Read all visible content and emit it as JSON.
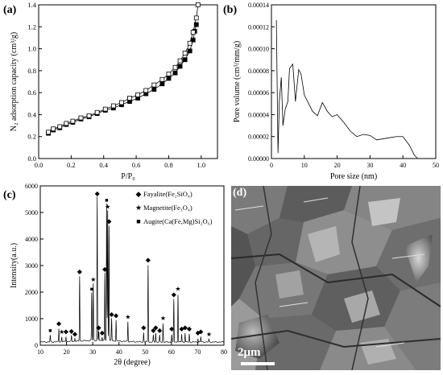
{
  "chart_data": [
    {
      "panel": "(a)",
      "type": "line",
      "ylabel": "N₂ adsorption capacity (cm³/g)",
      "xlabel": "P/P₀",
      "xlim": [
        0.0,
        1.1
      ],
      "ylim": [
        0.0,
        1.4
      ],
      "xticks": [
        "0.0",
        "0.2",
        "0.4",
        "0.6",
        "0.8",
        "1.0"
      ],
      "yticks": [
        "0.0",
        "0.2",
        "0.4",
        "0.6",
        "0.8",
        "1.0",
        "1.2",
        "1.4"
      ],
      "series": [
        {
          "marker": "filled-square",
          "x": [
            0.06,
            0.09,
            0.13,
            0.17,
            0.21,
            0.26,
            0.31,
            0.36,
            0.41,
            0.46,
            0.51,
            0.56,
            0.61,
            0.66,
            0.71,
            0.76,
            0.8,
            0.84,
            0.87,
            0.9,
            0.93,
            0.95,
            0.96,
            0.97
          ],
          "y": [
            0.23,
            0.26,
            0.28,
            0.31,
            0.33,
            0.36,
            0.38,
            0.41,
            0.44,
            0.46,
            0.49,
            0.52,
            0.55,
            0.59,
            0.63,
            0.68,
            0.73,
            0.78,
            0.84,
            0.9,
            0.98,
            1.08,
            1.16,
            1.22
          ]
        },
        {
          "marker": "open-square",
          "x": [
            0.06,
            0.09,
            0.13,
            0.17,
            0.21,
            0.26,
            0.31,
            0.36,
            0.41,
            0.46,
            0.51,
            0.56,
            0.61,
            0.66,
            0.71,
            0.76,
            0.8,
            0.84,
            0.87,
            0.9,
            0.93,
            0.95,
            0.97,
            0.98
          ],
          "y": [
            0.24,
            0.27,
            0.29,
            0.32,
            0.34,
            0.37,
            0.39,
            0.42,
            0.45,
            0.48,
            0.51,
            0.55,
            0.58,
            0.62,
            0.67,
            0.72,
            0.77,
            0.83,
            0.89,
            0.96,
            1.05,
            1.15,
            1.28,
            1.4
          ]
        }
      ]
    },
    {
      "panel": "(b)",
      "type": "line",
      "ylabel": "Pore volume (cm³/mm/g)",
      "xlabel": "Pore size (nm)",
      "xlim": [
        0,
        50
      ],
      "ylim": [
        0,
        0.00014
      ],
      "xticks": [
        "0",
        "10",
        "20",
        "30",
        "40",
        "50"
      ],
      "yticks": [
        "0.00000",
        "0.00002",
        "0.00004",
        "0.00006",
        "0.00008",
        "0.00010",
        "0.00012",
        "0.00014"
      ],
      "series": [
        {
          "x": [
            1.5,
            2.0,
            2.4,
            3.0,
            3.5,
            4.2,
            5.0,
            5.5,
            6.5,
            7.3,
            8.3,
            9.0,
            10.0,
            11.0,
            12.5,
            14.0,
            15.5,
            17.0,
            18.5,
            20.0,
            22.0,
            24.0,
            26.0,
            28.0,
            30.0,
            32.0,
            34.0,
            36.0,
            38.0,
            40.0,
            42.0,
            43.5,
            44.5
          ],
          "y": [
            0.000126,
            5e-06,
            5.2e-05,
            7.4e-05,
            3e-05,
            4.5e-05,
            5.2e-05,
            8.2e-05,
            8.6e-05,
            5.2e-05,
            8.1e-05,
            7.7e-05,
            5.8e-05,
            5.2e-05,
            4.3e-05,
            3.9e-05,
            5.1e-05,
            4.3e-05,
            3.8e-05,
            4e-05,
            3.3e-05,
            2.5e-05,
            2e-05,
            2.2e-05,
            2.1e-05,
            1.7e-05,
            1.8e-05,
            1.9e-05,
            2e-05,
            2e-05,
            1.2e-05,
            3e-06,
            0.0
          ]
        }
      ]
    },
    {
      "panel": "(c)",
      "type": "line",
      "ylabel": "Intensity(a.u.)",
      "xlabel": "2θ (degree)",
      "xlim": [
        10,
        80
      ],
      "ylim": [
        0,
        6000
      ],
      "xticks": [
        "10",
        "20",
        "30",
        "40",
        "50",
        "60",
        "70",
        "80"
      ],
      "yticks": [
        "0",
        "1000",
        "2000",
        "3000",
        "4000",
        "5000",
        "6000"
      ],
      "legend": [
        {
          "marker": "◆",
          "label": "Fayalite(Fe₂SiO₄)"
        },
        {
          "marker": "★",
          "label": "Magnetite(Fe₃O₄)"
        },
        {
          "marker": "■",
          "label": "Augite(Ca(Fe,Mg)Si₂O₆)"
        }
      ],
      "legend_position": "top-right",
      "peaks": [
        {
          "x": 13.8,
          "y": 400,
          "m": "■"
        },
        {
          "x": 17.1,
          "y": 650,
          "m": "◆"
        },
        {
          "x": 18.2,
          "y": 330,
          "m": "★"
        },
        {
          "x": 19.8,
          "y": 350,
          "m": "◆"
        },
        {
          "x": 21.9,
          "y": 360,
          "m": "◆"
        },
        {
          "x": 23.2,
          "y": 260,
          "m": "◆"
        },
        {
          "x": 25.0,
          "y": 2600,
          "m": "◆"
        },
        {
          "x": 29.6,
          "y": 1950,
          "m": "■"
        },
        {
          "x": 30.2,
          "y": 2300,
          "m": "★"
        },
        {
          "x": 31.7,
          "y": 5550,
          "m": "◆"
        },
        {
          "x": 32.3,
          "y": 500,
          "m": "◆"
        },
        {
          "x": 33.6,
          "y": 300,
          "m": "◆"
        },
        {
          "x": 34.6,
          "y": 2700,
          "m": "◆"
        },
        {
          "x": 35.3,
          "y": 5300,
          "m": "■"
        },
        {
          "x": 35.7,
          "y": 5050,
          "m": "★"
        },
        {
          "x": 36.2,
          "y": 4500,
          "m": "◆"
        },
        {
          "x": 37.2,
          "y": 1000,
          "m": "◆"
        },
        {
          "x": 38.9,
          "y": 950,
          "m": "◆"
        },
        {
          "x": 43.4,
          "y": 900,
          "m": "★"
        },
        {
          "x": 49.4,
          "y": 500,
          "m": "◆"
        },
        {
          "x": 51.1,
          "y": 3050,
          "m": "◆"
        },
        {
          "x": 53.1,
          "y": 400,
          "m": "◆"
        },
        {
          "x": 54.0,
          "y": 500,
          "m": "◆"
        },
        {
          "x": 55.5,
          "y": 400,
          "m": "◆"
        },
        {
          "x": 56.8,
          "y": 850,
          "m": "★"
        },
        {
          "x": 60.1,
          "y": 450,
          "m": "◆"
        },
        {
          "x": 60.9,
          "y": 1750,
          "m": "◆"
        },
        {
          "x": 62.5,
          "y": 1950,
          "m": "★"
        },
        {
          "x": 63.9,
          "y": 450,
          "m": "◆"
        },
        {
          "x": 65.2,
          "y": 500,
          "m": "◆"
        },
        {
          "x": 66.8,
          "y": 450,
          "m": "◆"
        },
        {
          "x": 70.1,
          "y": 300,
          "m": "◆"
        },
        {
          "x": 71.2,
          "y": 350,
          "m": "◆"
        },
        {
          "x": 74.3,
          "y": 250,
          "m": "★"
        }
      ]
    },
    {
      "panel": "(d)",
      "type": "image",
      "scale_bar": "2μm"
    }
  ]
}
